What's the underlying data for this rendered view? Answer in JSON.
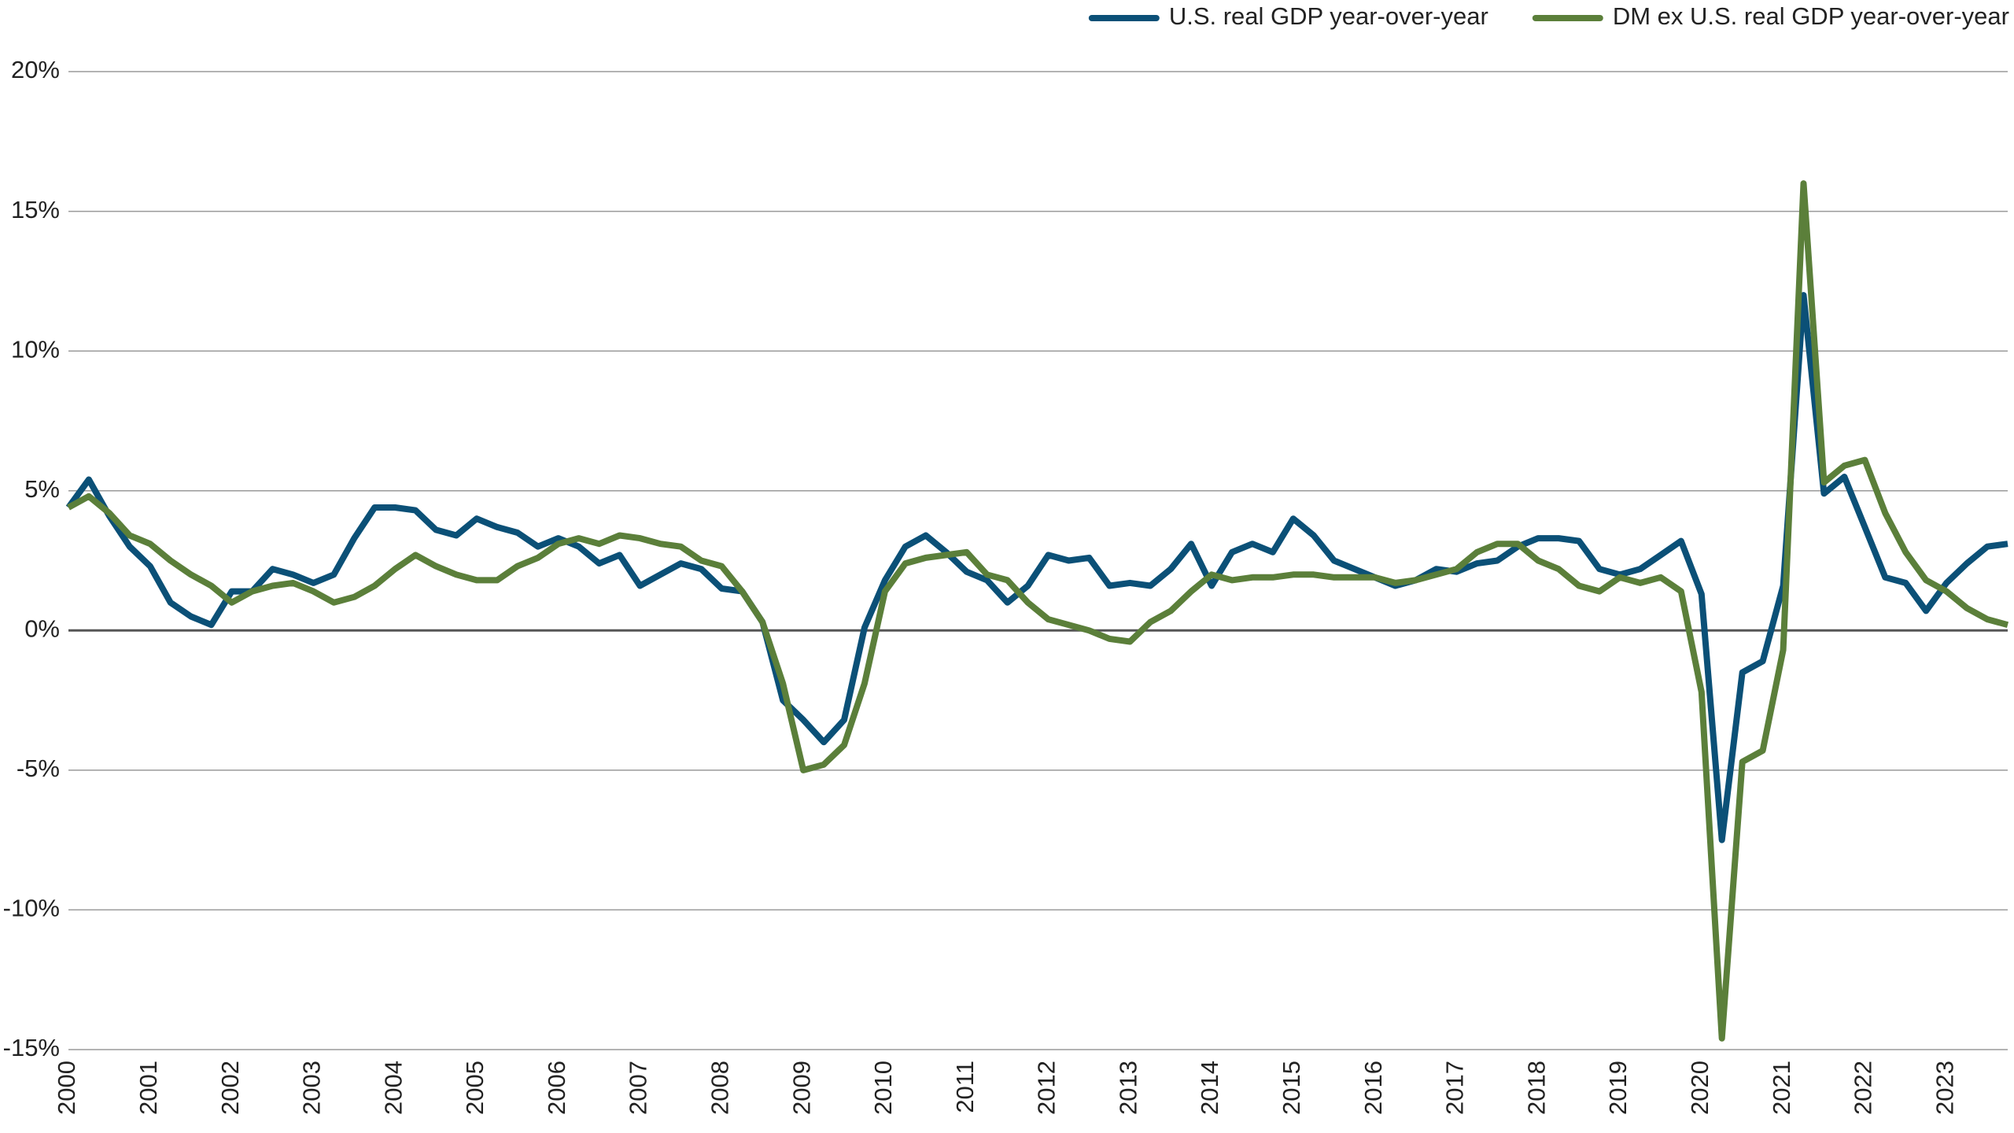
{
  "chart_data": {
    "type": "line",
    "categories": [
      "2000",
      null,
      null,
      null,
      "2001",
      null,
      null,
      null,
      "2002",
      null,
      null,
      null,
      "2003",
      null,
      null,
      null,
      "2004",
      null,
      null,
      null,
      "2005",
      null,
      null,
      null,
      "2006",
      null,
      null,
      null,
      "2007",
      null,
      null,
      null,
      "2008",
      null,
      null,
      null,
      "2009",
      null,
      null,
      null,
      "2010",
      null,
      null,
      null,
      "2011",
      null,
      null,
      null,
      "2012",
      null,
      null,
      null,
      "2013",
      null,
      null,
      null,
      "2014",
      null,
      null,
      null,
      "2015",
      null,
      null,
      null,
      "2016",
      null,
      null,
      null,
      "2017",
      null,
      null,
      null,
      "2018",
      null,
      null,
      null,
      "2019",
      null,
      null,
      null,
      "2020",
      null,
      null,
      null,
      "2021",
      null,
      null,
      null,
      "2022",
      null,
      null,
      null,
      "2023",
      null,
      null,
      null
    ],
    "series": [
      {
        "name": "U.S. real GDP year-over-year",
        "color": "#0b5077",
        "values": [
          4.4,
          5.4,
          4.1,
          3.0,
          2.3,
          1.0,
          0.5,
          0.2,
          1.4,
          1.4,
          2.2,
          2.0,
          1.7,
          2.0,
          3.3,
          4.4,
          4.4,
          4.3,
          3.6,
          3.4,
          4.0,
          3.7,
          3.5,
          3.0,
          3.3,
          3.0,
          2.4,
          2.7,
          1.6,
          2.0,
          2.4,
          2.2,
          1.5,
          1.4,
          0.3,
          -2.5,
          -3.2,
          -4.0,
          -3.2,
          0.1,
          1.8,
          3.0,
          3.4,
          2.8,
          2.1,
          1.8,
          1.0,
          1.6,
          2.7,
          2.5,
          2.6,
          1.6,
          1.7,
          1.6,
          2.2,
          3.1,
          1.6,
          2.8,
          3.1,
          2.8,
          4.0,
          3.4,
          2.5,
          2.2,
          1.9,
          1.6,
          1.8,
          2.2,
          2.1,
          2.4,
          2.5,
          3.0,
          3.3,
          3.3,
          3.2,
          2.2,
          2.0,
          2.2,
          2.7,
          3.2,
          1.3,
          -7.5,
          -1.5,
          -1.1,
          1.6,
          12.0,
          4.9,
          5.5,
          3.7,
          1.9,
          1.7,
          0.7,
          1.7,
          2.4,
          3.0,
          3.1
        ]
      },
      {
        "name": "DM ex U.S. real GDP year-over-year",
        "color": "#5b7f3a",
        "values": [
          4.4,
          4.8,
          4.2,
          3.4,
          3.1,
          2.5,
          2.0,
          1.6,
          1.0,
          1.4,
          1.6,
          1.7,
          1.4,
          1.0,
          1.2,
          1.6,
          2.2,
          2.7,
          2.3,
          2.0,
          1.8,
          1.8,
          2.3,
          2.6,
          3.1,
          3.3,
          3.1,
          3.4,
          3.3,
          3.1,
          3.0,
          2.5,
          2.3,
          1.4,
          0.3,
          -1.9,
          -5.0,
          -4.8,
          -4.1,
          -1.9,
          1.4,
          2.4,
          2.6,
          2.7,
          2.8,
          2.0,
          1.8,
          1.0,
          0.4,
          0.2,
          0.0,
          -0.3,
          -0.4,
          0.3,
          0.7,
          1.4,
          2.0,
          1.8,
          1.9,
          1.9,
          2.0,
          2.0,
          1.9,
          1.9,
          1.9,
          1.7,
          1.8,
          2.0,
          2.2,
          2.8,
          3.1,
          3.1,
          2.5,
          2.2,
          1.6,
          1.4,
          1.9,
          1.7,
          1.9,
          1.4,
          -2.2,
          -14.6,
          -4.7,
          -4.3,
          -0.7,
          16.0,
          5.3,
          5.9,
          6.1,
          4.2,
          2.8,
          1.8,
          1.4,
          0.8,
          0.4,
          0.2
        ]
      }
    ],
    "ylim": [
      -15,
      20
    ],
    "yticks": [
      {
        "value": -15,
        "label": "-15%"
      },
      {
        "value": -10,
        "label": "-10%"
      },
      {
        "value": -5,
        "label": "-5%"
      },
      {
        "value": 0,
        "label": "0%"
      },
      {
        "value": 5,
        "label": "5%"
      },
      {
        "value": 10,
        "label": "10%"
      },
      {
        "value": 15,
        "label": "15%"
      },
      {
        "value": 20,
        "label": "20%"
      }
    ],
    "grid": true,
    "legend": "top-right"
  }
}
